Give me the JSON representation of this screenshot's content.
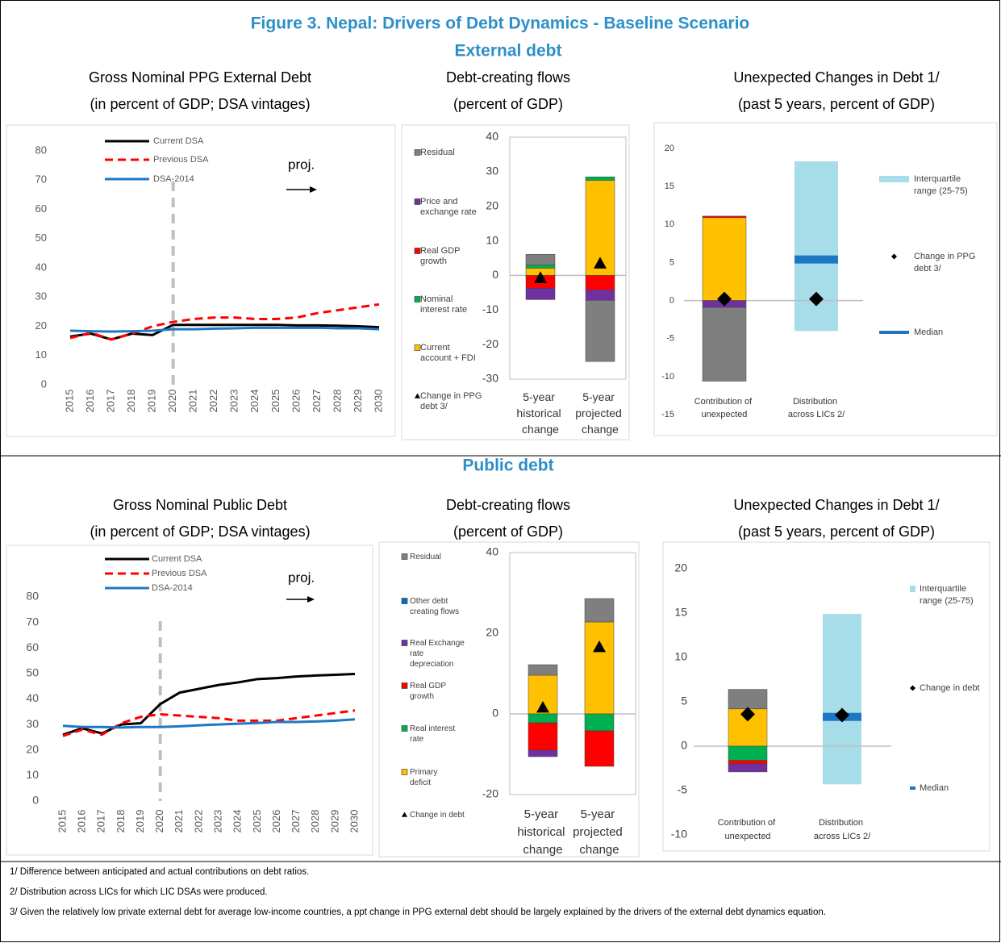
{
  "title": "Figure 3. Nepal: Drivers of Debt Dynamics - Baseline Scenario",
  "sections": [
    "External debt",
    "Public debt"
  ],
  "chart_data": [
    {
      "type": "line",
      "title": "Gross Nominal PPG External Debt",
      "subtitle": "(in percent of GDP; DSA vintages)",
      "categories": [
        "2015",
        "2016",
        "2017",
        "2018",
        "2019",
        "2020",
        "2021",
        "2022",
        "2023",
        "2024",
        "2025",
        "2026",
        "2027",
        "2028",
        "2029",
        "2030"
      ],
      "series": [
        {
          "name": "Current DSA",
          "color": "#000000",
          "values": [
            16.5,
            17.5,
            15.5,
            17.5,
            17,
            20.5,
            20.5,
            20.5,
            20.5,
            20.5,
            20.5,
            20.3,
            20.3,
            20.2,
            20,
            19.7
          ]
        },
        {
          "name": "Previous DSA",
          "color": "#ff0000",
          "style": "dashed",
          "values": [
            16,
            17.8,
            15.5,
            17.5,
            20,
            21.5,
            22.5,
            23,
            23,
            22.5,
            22.5,
            23,
            24.5,
            25.5,
            26.5,
            27.5
          ]
        },
        {
          "name": "DSA-2014",
          "color": "#1f77c4",
          "values": [
            18.5,
            18.3,
            18.2,
            18.3,
            18.5,
            19,
            19,
            19.2,
            19.3,
            19.5,
            19.5,
            19.5,
            19.5,
            19.3,
            19.3,
            19
          ]
        }
      ],
      "ylim": [
        0,
        80
      ],
      "yticks": [
        0,
        10,
        20,
        30,
        40,
        50,
        60,
        70,
        80
      ],
      "annotation": "proj."
    },
    {
      "type": "bar",
      "stacked": true,
      "title": "Debt-creating flows",
      "subtitle": "(percent of GDP)",
      "categories": [
        "5-year historical change",
        "5-year projected change"
      ],
      "series": [
        {
          "name": "Residual",
          "color": "#7f7f7f",
          "values": [
            3.1,
            -17.7
          ]
        },
        {
          "name": "Price and exchange rate",
          "color": "#7030a0",
          "values": [
            -3.3,
            -3
          ]
        },
        {
          "name": "Real GDP growth",
          "color": "#ff0000",
          "values": [
            -3.7,
            -4.2
          ]
        },
        {
          "name": "Nominal interest rate",
          "color": "#00b050",
          "values": [
            0.9,
            1
          ]
        },
        {
          "name": "Current account + FDI",
          "color": "#ffc000",
          "values": [
            2.1,
            27.5
          ]
        }
      ],
      "markers": {
        "name": "Change in PPG debt 3/",
        "shape": "triangle",
        "color": "#000000",
        "values": [
          -0.7,
          3.5
        ]
      },
      "ylim": [
        -30,
        40
      ],
      "yticks": [
        -30,
        -20,
        -10,
        0,
        10,
        20,
        30,
        40
      ]
    },
    {
      "type": "bar",
      "stacked": true,
      "title": "Unexpected Changes in Debt 1/",
      "subtitle": "(past 5 years, percent of GDP)",
      "categories": [
        "Contribution of unexpected",
        "Distribution across LICs 2/"
      ],
      "series": [
        {
          "color": "#7f7f7f",
          "values": [
            -9.7,
            null
          ]
        },
        {
          "color": "#7030a0",
          "values": [
            -0.9,
            null
          ]
        },
        {
          "color": "#ff0000",
          "values": [
            0.2,
            null
          ]
        },
        {
          "color": "#ffc000",
          "values": [
            10.9,
            null
          ]
        }
      ],
      "range": {
        "name": "Interquartile range (25-75)",
        "color": "#a6dde9",
        "low": [
          null,
          -4
        ],
        "high": [
          null,
          18.3
        ]
      },
      "markers": {
        "name": "Change in PPG debt 3/",
        "shape": "diamond",
        "color": "#000000",
        "values": [
          0.2,
          0.2
        ]
      },
      "median": {
        "name": "Median",
        "color": "#1f77c4",
        "values": [
          null,
          5.4
        ]
      },
      "ylim": [
        -15,
        20
      ],
      "yticks": [
        -15,
        -10,
        -5,
        0,
        5,
        10,
        15,
        20
      ]
    },
    {
      "type": "line",
      "title": "Gross Nominal Public Debt",
      "subtitle": "(in percent of GDP; DSA vintages)",
      "categories": [
        "2015",
        "2016",
        "2017",
        "2018",
        "2019",
        "2020",
        "2021",
        "2022",
        "2023",
        "2024",
        "2025",
        "2026",
        "2027",
        "2028",
        "2029",
        "2030"
      ],
      "series": [
        {
          "name": "Current DSA",
          "color": "#000000",
          "values": [
            26,
            28.5,
            26.5,
            30,
            30.5,
            38,
            42.5,
            44,
            45.5,
            46.5,
            47.8,
            48.2,
            48.8,
            49.2,
            49.5,
            49.8
          ]
        },
        {
          "name": "Previous DSA",
          "color": "#ff0000",
          "style": "dashed",
          "values": [
            25.5,
            28,
            26,
            30.5,
            33,
            34,
            33.5,
            33,
            32.5,
            31.5,
            31.5,
            31.5,
            32.5,
            33.5,
            34.5,
            35.5
          ]
        },
        {
          "name": "DSA-2014",
          "color": "#1f77c4",
          "values": [
            29.5,
            29,
            29,
            28.8,
            29,
            29,
            29.3,
            29.7,
            30,
            30.3,
            30.6,
            31,
            31,
            31.2,
            31.5,
            32
          ]
        }
      ],
      "ylim": [
        0,
        80
      ],
      "yticks": [
        0,
        10,
        20,
        30,
        40,
        50,
        60,
        70,
        80
      ],
      "annotation": "proj."
    },
    {
      "type": "bar",
      "stacked": true,
      "title": "Debt-creating flows",
      "subtitle": "(percent of GDP)",
      "categories": [
        "5-year historical change",
        "5-year projected change"
      ],
      "series": [
        {
          "name": "Residual",
          "color": "#7f7f7f",
          "values": [
            2.6,
            5.8
          ]
        },
        {
          "name": "Other debt creating flows",
          "color": "#0070c0",
          "values": [
            0,
            0
          ]
        },
        {
          "name": "Real Exchange rate depreciation",
          "color": "#7030a0",
          "values": [
            -1.6,
            0
          ]
        },
        {
          "name": "Real GDP growth",
          "color": "#ff0000",
          "values": [
            -6.8,
            -8.8
          ]
        },
        {
          "name": "Real interest rate",
          "color": "#00b050",
          "values": [
            -2.2,
            -4.2
          ]
        },
        {
          "name": "Primary deficit",
          "color": "#ffc000",
          "values": [
            9.6,
            22.8
          ]
        }
      ],
      "markers": {
        "name": "Change in debt",
        "shape": "triangle",
        "color": "#000000",
        "values": [
          1.6,
          16.6
        ]
      },
      "ylim": [
        -20,
        40
      ],
      "yticks": [
        -20,
        0,
        20,
        40
      ]
    },
    {
      "type": "bar",
      "stacked": true,
      "title": "Unexpected Changes in Debt 1/",
      "subtitle": "(past 5 years, percent of GDP)",
      "categories": [
        "Contribution of unexpected",
        "Distribution across LICs 2/"
      ],
      "series": [
        {
          "color": "#7f7f7f",
          "values": [
            2.2,
            null
          ]
        },
        {
          "color": "#7030a0",
          "values": [
            -0.9,
            null
          ]
        },
        {
          "color": "#ff0000",
          "values": [
            -0.4,
            null
          ]
        },
        {
          "color": "#00b050",
          "values": [
            -1.6,
            null
          ]
        },
        {
          "color": "#ffc000",
          "values": [
            4.2,
            null
          ]
        }
      ],
      "range": {
        "name": "Interquartile range (25-75)",
        "color": "#a6dde9",
        "low": [
          null,
          -4.3
        ],
        "high": [
          null,
          14.9
        ]
      },
      "markers": {
        "name": "Change in debt",
        "shape": "diamond",
        "color": "#000000",
        "values": [
          3.6,
          3.5
        ]
      },
      "median": {
        "name": "Median",
        "color": "#1f77c4",
        "values": [
          null,
          3.3
        ]
      },
      "ylim": [
        -10,
        20
      ],
      "yticks": [
        -10,
        -5,
        0,
        5,
        10,
        15,
        20
      ]
    }
  ],
  "footnotes": [
    "1/ Difference between anticipated and actual contributions on debt ratios.",
    "2/ Distribution across LICs for which LIC DSAs were produced.",
    "3/ Given the relatively low private external debt for average low-income countries, a ppt change in PPG external debt should be largely explained by the drivers of the external debt dynamics equation."
  ]
}
